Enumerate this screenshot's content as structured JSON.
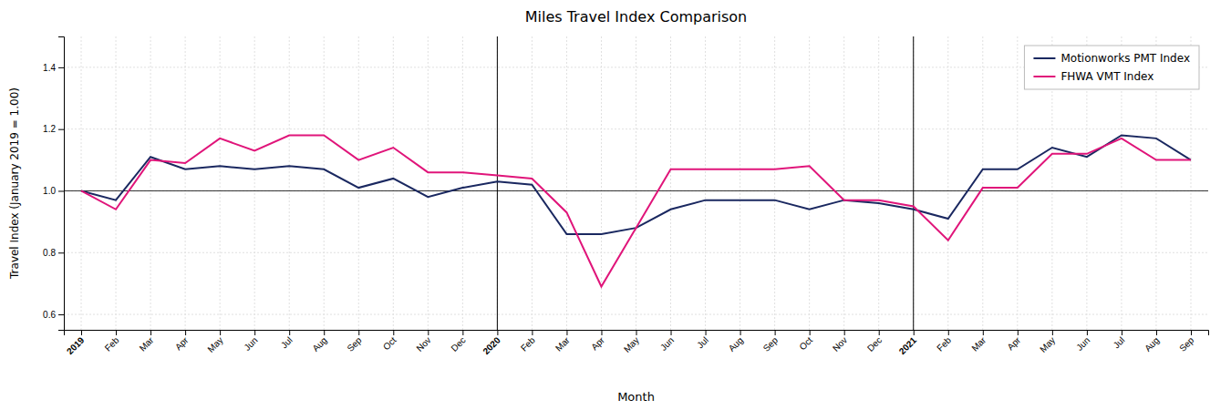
{
  "chart_data": {
    "type": "line",
    "title": "Miles Travel Index Comparison",
    "x_label": "Month",
    "y_label": "Travel Index (January 2019 = 1.00)",
    "categories": [
      "2019",
      "Feb",
      "Mar",
      "Apr",
      "May",
      "Jun",
      "Jul",
      "Aug",
      "Sep",
      "Oct",
      "Nov",
      "Dec",
      "2020",
      "Feb",
      "Mar",
      "Apr",
      "May",
      "Jun",
      "Jul",
      "Aug",
      "Sep",
      "Oct",
      "Nov",
      "Dec",
      "2021",
      "Feb",
      "Mar",
      "Apr",
      "May",
      "Jun",
      "Jul",
      "Aug",
      "Sep"
    ],
    "series": [
      {
        "name": "Motionworks PMT Index",
        "color": "#1a2860",
        "values": [
          1.0,
          0.97,
          1.11,
          1.07,
          1.08,
          1.07,
          1.08,
          1.07,
          1.01,
          1.04,
          0.98,
          1.01,
          1.03,
          1.02,
          0.86,
          0.86,
          0.88,
          0.94,
          0.97,
          0.97,
          0.97,
          0.94,
          0.97,
          0.96,
          0.94,
          0.91,
          1.07,
          1.07,
          1.14,
          1.11,
          1.18,
          1.17,
          1.1
        ]
      },
      {
        "name": "FHWA VMT Index",
        "color": "#e0157a",
        "values": [
          1.0,
          0.94,
          1.1,
          1.09,
          1.17,
          1.13,
          1.18,
          1.18,
          1.1,
          1.14,
          1.06,
          1.06,
          1.05,
          1.04,
          0.93,
          0.69,
          0.88,
          1.07,
          1.07,
          1.07,
          1.07,
          1.08,
          0.97,
          0.97,
          0.95,
          0.84,
          1.01,
          1.01,
          1.12,
          1.12,
          1.17,
          1.1,
          1.1
        ]
      }
    ],
    "ylim": [
      0.55,
      1.5
    ],
    "yticks": [
      0.6,
      0.8,
      {
        "value": 1.0,
        "label": "1.0"
      },
      1.2,
      1.4
    ],
    "vlines": [
      12,
      24
    ],
    "hlines": [
      1.0
    ],
    "grid": true,
    "legend": "upper right"
  }
}
